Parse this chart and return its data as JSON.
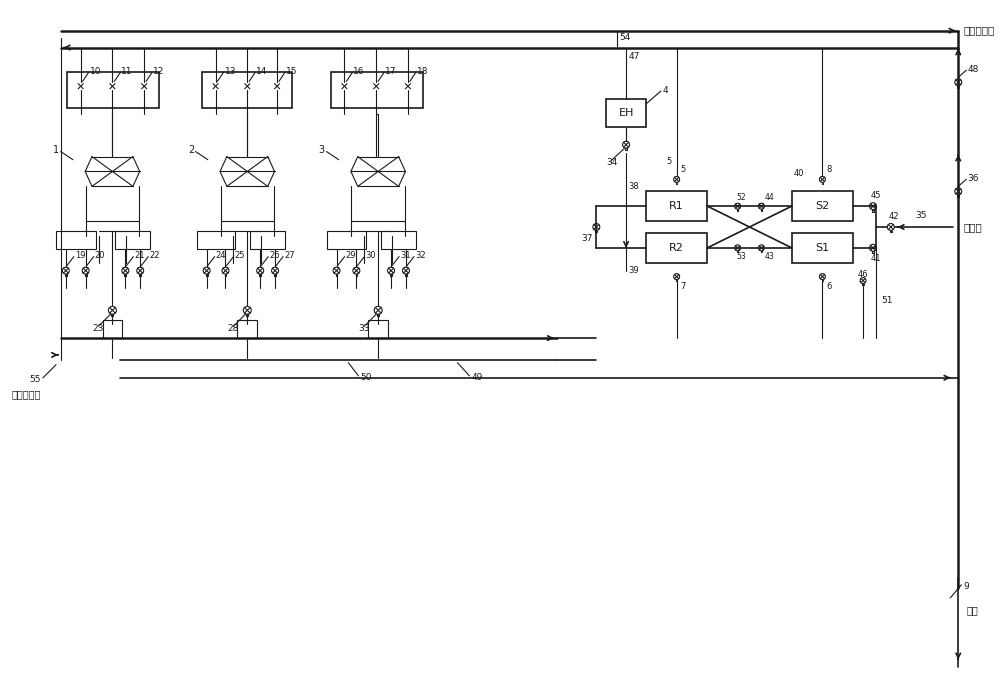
{
  "bg_color": "#ffffff",
  "line_color": "#1a1a1a",
  "text_color": "#1a1a1a",
  "labels": {
    "top_right": "净化后空气",
    "mid_right": "污氮气",
    "bot_right": "放空",
    "bot_left": "待净化空气"
  },
  "valve_nums_top": [
    "10",
    "11",
    "12",
    "13",
    "14",
    "15",
    "16",
    "17",
    "18"
  ],
  "valve_nums_mid": [
    "19",
    "20",
    "21",
    "22",
    "24",
    "25",
    "26",
    "27",
    "29",
    "30",
    "31",
    "32"
  ],
  "valve_nums_bot": [
    "23",
    "28",
    "33"
  ],
  "box_labels": [
    "R1",
    "R2",
    "S1",
    "S2",
    "EH"
  ],
  "number_labels": [
    "1",
    "2",
    "3",
    "4",
    "5",
    "6",
    "7",
    "8",
    "9",
    "34",
    "35",
    "36",
    "37",
    "38",
    "39",
    "40",
    "41",
    "42",
    "43",
    "44",
    "45",
    "46",
    "47",
    "48",
    "49",
    "50",
    "51",
    "52",
    "53",
    "54",
    "55"
  ]
}
